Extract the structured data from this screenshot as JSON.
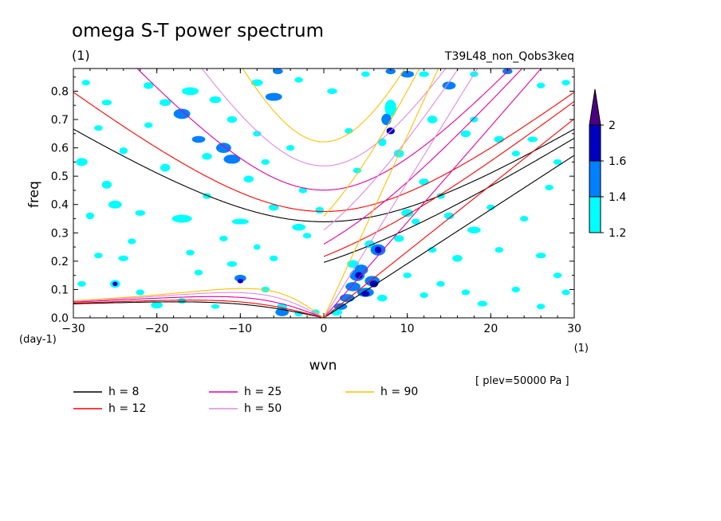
{
  "chart_data": {
    "type": "heatmap",
    "title": "omega S-T power spectrum",
    "subtitle": "(1)",
    "case_label": "T39L48_non_Qobs3keq",
    "xlabel": "wvn",
    "ylabel": "freq",
    "x_unit": "(1)",
    "y_unit": "(day-1)",
    "level_note": "[ plev=50000 Pa ]",
    "xlim": [
      -30,
      30
    ],
    "ylim": [
      0,
      0.88
    ],
    "xticks": [
      {
        "value": -30,
        "label": "−30"
      },
      {
        "value": -20,
        "label": "−20"
      },
      {
        "value": -10,
        "label": "−10"
      },
      {
        "value": 0,
        "label": "0"
      },
      {
        "value": 10,
        "label": "10"
      },
      {
        "value": 20,
        "label": "20"
      },
      {
        "value": 30,
        "label": "30"
      }
    ],
    "yticks": [
      {
        "value": 0.0,
        "label": "0.0"
      },
      {
        "value": 0.1,
        "label": "0.1"
      },
      {
        "value": 0.2,
        "label": "0.2"
      },
      {
        "value": 0.3,
        "label": "0.3"
      },
      {
        "value": 0.4,
        "label": "0.4"
      },
      {
        "value": 0.5,
        "label": "0.5"
      },
      {
        "value": 0.6,
        "label": "0.6"
      },
      {
        "value": 0.7,
        "label": "0.7"
      },
      {
        "value": 0.8,
        "label": "0.8"
      }
    ],
    "colorbar": {
      "levels": [
        {
          "label": "1.2",
          "color": "#00ffff"
        },
        {
          "label": "1.4",
          "color": "#0080ff"
        },
        {
          "label": "1.6",
          "color": "#0000c0"
        },
        {
          "label": "2",
          "color": "#4b0082"
        }
      ],
      "top_color": "#4b0082"
    },
    "dispersion_curves": [
      {
        "label": "h =  8",
        "h": 8,
        "color": "#000000"
      },
      {
        "label": "h = 12",
        "h": 12,
        "color": "#ff0000"
      },
      {
        "label": "h = 25",
        "h": 25,
        "color": "#e000a0"
      },
      {
        "label": "h = 50",
        "h": 50,
        "color": "#e08ae0"
      },
      {
        "label": "h = 90",
        "h": 90,
        "color": "#ffc000"
      }
    ],
    "blobs": [
      [
        -28.5,
        0.83,
        0.5,
        0.01,
        1
      ],
      [
        -26,
        0.76,
        0.6,
        0.01,
        1
      ],
      [
        -21,
        0.82,
        0.6,
        0.012,
        1
      ],
      [
        -19,
        0.76,
        0.7,
        0.012,
        1
      ],
      [
        -16,
        0.8,
        1.0,
        0.014,
        1
      ],
      [
        -17,
        0.72,
        1.0,
        0.018,
        2
      ],
      [
        -13,
        0.77,
        0.7,
        0.012,
        1
      ],
      [
        -11,
        0.7,
        0.6,
        0.012,
        1
      ],
      [
        -8,
        0.83,
        0.7,
        0.012,
        1
      ],
      [
        -6,
        0.78,
        1.0,
        0.014,
        2
      ],
      [
        -3,
        0.84,
        0.5,
        0.01,
        1
      ],
      [
        -5.5,
        0.87,
        0.6,
        0.01,
        2
      ],
      [
        1,
        0.8,
        0.6,
        0.01,
        1
      ],
      [
        5,
        0.86,
        0.5,
        0.01,
        1
      ],
      [
        -29,
        0.55,
        0.7,
        0.014,
        1
      ],
      [
        -26,
        0.47,
        0.6,
        0.014,
        1
      ],
      [
        -24,
        0.59,
        0.5,
        0.012,
        1
      ],
      [
        -19,
        0.53,
        0.6,
        0.014,
        1
      ],
      [
        -14,
        0.57,
        0.6,
        0.012,
        1
      ],
      [
        -15,
        0.63,
        0.8,
        0.012,
        2
      ],
      [
        -12,
        0.6,
        0.9,
        0.018,
        2
      ],
      [
        -11,
        0.56,
        1.0,
        0.016,
        2
      ],
      [
        -9,
        0.49,
        0.6,
        0.012,
        1
      ],
      [
        -7,
        0.55,
        0.5,
        0.01,
        1
      ],
      [
        -4,
        0.6,
        0.5,
        0.01,
        1
      ],
      [
        -2.5,
        0.45,
        0.5,
        0.01,
        1
      ],
      [
        -28,
        0.36,
        0.5,
        0.012,
        1
      ],
      [
        -25,
        0.4,
        0.8,
        0.014,
        1
      ],
      [
        -22,
        0.37,
        0.6,
        0.01,
        1
      ],
      [
        -17,
        0.35,
        1.2,
        0.014,
        1
      ],
      [
        -14,
        0.43,
        0.5,
        0.01,
        1
      ],
      [
        -10,
        0.34,
        1.0,
        0.01,
        1
      ],
      [
        -6,
        0.39,
        0.6,
        0.012,
        1
      ],
      [
        -3,
        0.32,
        0.8,
        0.012,
        1
      ],
      [
        -2,
        0.29,
        0.5,
        0.01,
        1
      ],
      [
        -27,
        0.22,
        0.5,
        0.01,
        1
      ],
      [
        -24,
        0.21,
        0.6,
        0.01,
        1
      ],
      [
        -16,
        0.23,
        0.5,
        0.01,
        1
      ],
      [
        -11,
        0.19,
        0.6,
        0.01,
        1
      ],
      [
        -6,
        0.21,
        0.5,
        0.01,
        1
      ],
      [
        -25,
        0.12,
        0.6,
        0.014,
        1
      ],
      [
        -25,
        0.12,
        0.3,
        0.008,
        3
      ],
      [
        -15,
        0.16,
        0.5,
        0.01,
        1
      ],
      [
        -10,
        0.14,
        0.7,
        0.012,
        2
      ],
      [
        -10,
        0.13,
        0.35,
        0.008,
        3
      ],
      [
        -7,
        0.1,
        0.5,
        0.01,
        1
      ],
      [
        -17,
        0.06,
        0.5,
        0.01,
        1
      ],
      [
        -20,
        0.045,
        0.7,
        0.012,
        1
      ],
      [
        -5,
        0.04,
        0.6,
        0.012,
        1
      ],
      [
        -5,
        0.02,
        0.8,
        0.014,
        2
      ],
      [
        -3,
        0.015,
        0.5,
        0.01,
        1
      ],
      [
        -1,
        0.02,
        0.5,
        0.01,
        1
      ],
      [
        -23,
        0.27,
        0.5,
        0.01,
        1
      ],
      [
        -12,
        0.28,
        0.5,
        0.01,
        1
      ],
      [
        -8,
        0.25,
        0.4,
        0.01,
        1
      ],
      [
        8,
        0.87,
        0.6,
        0.01,
        2
      ],
      [
        10,
        0.86,
        0.8,
        0.012,
        2
      ],
      [
        12,
        0.86,
        0.6,
        0.01,
        1
      ],
      [
        15,
        0.82,
        0.8,
        0.014,
        2
      ],
      [
        18,
        0.86,
        0.5,
        0.01,
        1
      ],
      [
        22,
        0.87,
        0.6,
        0.01,
        2
      ],
      [
        26,
        0.82,
        0.5,
        0.01,
        1
      ],
      [
        29,
        0.83,
        0.5,
        0.01,
        1
      ],
      [
        8,
        0.74,
        0.7,
        0.03,
        1
      ],
      [
        7.5,
        0.7,
        0.6,
        0.02,
        2
      ],
      [
        8,
        0.66,
        0.5,
        0.012,
        3
      ],
      [
        7,
        0.62,
        0.5,
        0.014,
        1
      ],
      [
        9,
        0.58,
        0.6,
        0.014,
        1
      ],
      [
        13,
        0.7,
        0.6,
        0.014,
        1
      ],
      [
        17,
        0.65,
        0.6,
        0.012,
        1
      ],
      [
        18,
        0.7,
        0.5,
        0.01,
        1
      ],
      [
        21,
        0.63,
        0.6,
        0.012,
        1
      ],
      [
        23,
        0.58,
        0.5,
        0.01,
        1
      ],
      [
        25,
        0.63,
        0.6,
        0.01,
        1
      ],
      [
        28,
        0.55,
        0.5,
        0.01,
        1
      ],
      [
        27,
        0.46,
        0.5,
        0.01,
        1
      ],
      [
        12,
        0.48,
        0.6,
        0.012,
        1
      ],
      [
        14,
        0.43,
        0.5,
        0.01,
        1
      ],
      [
        10,
        0.37,
        0.7,
        0.014,
        1
      ],
      [
        11,
        0.34,
        0.5,
        0.01,
        1
      ],
      [
        15,
        0.36,
        0.6,
        0.012,
        1
      ],
      [
        20,
        0.39,
        0.5,
        0.01,
        1
      ],
      [
        24,
        0.35,
        0.5,
        0.01,
        1
      ],
      [
        18,
        0.31,
        0.8,
        0.012,
        1
      ],
      [
        9,
        0.28,
        0.6,
        0.012,
        1
      ],
      [
        13,
        0.24,
        0.5,
        0.01,
        1
      ],
      [
        16,
        0.21,
        0.6,
        0.012,
        1
      ],
      [
        21,
        0.24,
        0.5,
        0.01,
        1
      ],
      [
        26,
        0.22,
        0.6,
        0.01,
        1
      ],
      [
        5.5,
        0.26,
        0.6,
        0.014,
        1
      ],
      [
        6.5,
        0.24,
        0.9,
        0.02,
        2
      ],
      [
        6.5,
        0.24,
        0.4,
        0.012,
        3
      ],
      [
        3.5,
        0.19,
        0.7,
        0.014,
        1
      ],
      [
        4.5,
        0.17,
        0.8,
        0.018,
        2
      ],
      [
        4,
        0.15,
        0.9,
        0.02,
        2
      ],
      [
        4.2,
        0.15,
        0.45,
        0.012,
        3
      ],
      [
        5.8,
        0.13,
        0.9,
        0.018,
        2
      ],
      [
        6,
        0.12,
        0.5,
        0.012,
        3
      ],
      [
        3.5,
        0.11,
        0.9,
        0.016,
        2
      ],
      [
        5,
        0.09,
        1.0,
        0.016,
        2
      ],
      [
        5,
        0.085,
        0.5,
        0.01,
        3
      ],
      [
        2.8,
        0.07,
        0.9,
        0.014,
        2
      ],
      [
        7,
        0.07,
        0.6,
        0.012,
        1
      ],
      [
        2,
        0.04,
        0.8,
        0.012,
        2
      ],
      [
        1.5,
        0.02,
        0.7,
        0.012,
        1
      ],
      [
        10,
        0.15,
        0.5,
        0.01,
        1
      ],
      [
        12,
        0.08,
        0.5,
        0.01,
        1
      ],
      [
        14,
        0.12,
        0.5,
        0.01,
        1
      ],
      [
        17,
        0.09,
        0.5,
        0.01,
        1
      ],
      [
        19,
        0.05,
        0.6,
        0.01,
        1
      ],
      [
        23,
        0.1,
        0.5,
        0.01,
        1
      ],
      [
        26,
        0.04,
        0.5,
        0.01,
        1
      ],
      [
        28,
        0.15,
        0.5,
        0.01,
        1
      ],
      [
        29,
        0.09,
        0.5,
        0.01,
        1
      ],
      [
        -29,
        0.12,
        0.5,
        0.01,
        1
      ],
      [
        -22,
        0.09,
        0.5,
        0.01,
        1
      ],
      [
        -13,
        0.04,
        0.5,
        0.008,
        1
      ],
      [
        -27,
        0.67,
        0.5,
        0.01,
        1
      ],
      [
        -21,
        0.68,
        0.5,
        0.01,
        1
      ],
      [
        -8,
        0.65,
        0.5,
        0.01,
        1
      ],
      [
        3,
        0.66,
        0.5,
        0.01,
        1
      ],
      [
        4,
        0.52,
        0.5,
        0.01,
        1
      ],
      [
        -0.5,
        0.38,
        0.5,
        0.012,
        1
      ]
    ]
  }
}
